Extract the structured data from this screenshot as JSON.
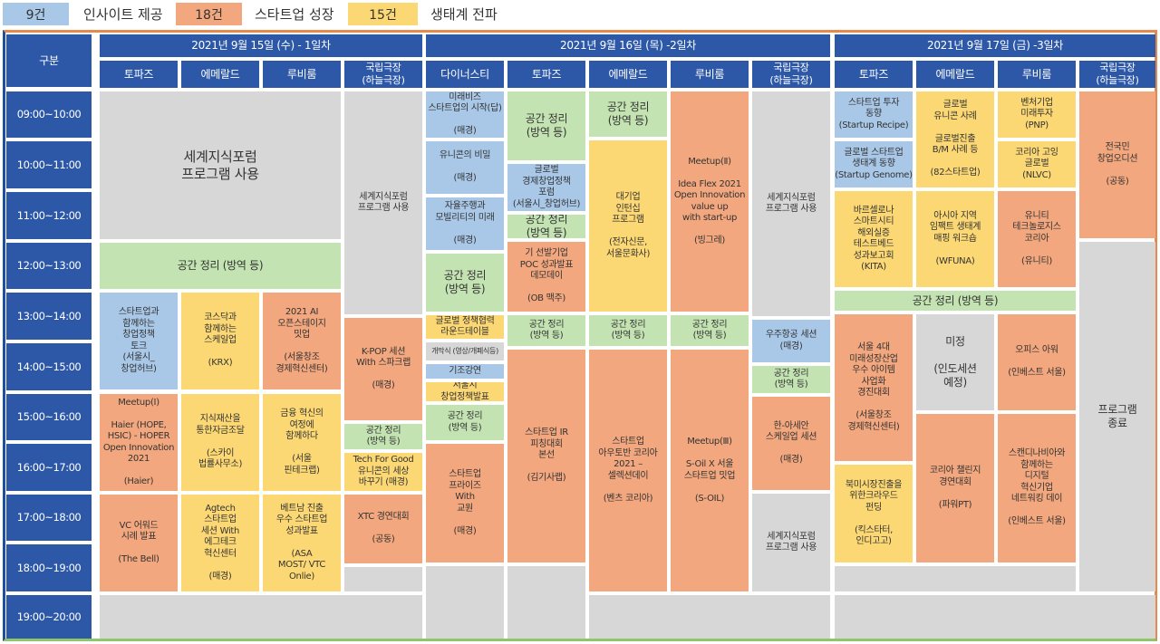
{
  "legend": [
    {
      "count": "9건",
      "label": "인사이트 제공",
      "color": "#a9c8e8"
    },
    {
      "count": "18건",
      "label": "스타트업 성장",
      "color": "#f2a77e"
    },
    {
      "count": "15건",
      "label": "생태계 전파",
      "color": "#fcd874"
    }
  ],
  "header": {
    "corner": "구분",
    "days": [
      "2021년 9월 15일 (수) - 1일차",
      "2021년 9월 16일 (목) -2일차",
      "2021년 9월 17일 (금) -3일차"
    ]
  },
  "venues": {
    "d1": [
      "토파즈",
      "에메랄드",
      "루비룸",
      "국립극장\n(하늘극장)"
    ],
    "d2": [
      "다이너스티",
      "토파즈",
      "에메랄드",
      "루비룸",
      "국립극장\n(하늘극장)"
    ],
    "d3": [
      "토파즈",
      "에메랄드",
      "루비룸",
      "국립극장\n(하늘극장)"
    ]
  },
  "times": [
    "09:00~10:00",
    "10:00~11:00",
    "11:00~12:00",
    "12:00~13:00",
    "13:00~14:00",
    "14:00~15:00",
    "15:00~16:00",
    "16:00~17:00",
    "17:00~18:00",
    "18:00~19:00",
    "19:00~20:00"
  ],
  "sessions": {
    "d1_forum": "세계지식포럼\n프로그램 사용",
    "d1_clean": "공간 정리 (방역 등)",
    "d1_theatre_forum": "세계지식포럼\n프로그램 사용",
    "d1_t1": "스타트업과\n함께하는\n창업정책\n토크\n(서울시_\n창업허브)",
    "d1_e1": "코스닥과\n함께하는\n스케일업\n\n(KRX)",
    "d1_r1": "2021 AI\n오픈스테이지\n밋업\n\n(서울창조\n경제혁신센터)",
    "d1_kpop": "K-POP 세션\nWith 스파크랩\n\n(매경)",
    "d1_t2": "Meetup(Ⅰ)\n\nHaier (HOPE,\nHSIC) - HOPER\nOpen Innovation\n2021\n\n(Haier)",
    "d1_e2": "지식재산을\n통한자금조달\n\n(스카이\n법률사무소)",
    "d1_r2": "금융 혁신의\n여정에\n함께하다\n\n(서울\n핀테크랩)",
    "d1_th_clean": "공간 정리\n(방역 등)",
    "d1_th_tech": "Tech For Good\n유니콘의 세상\n바꾸기 (매경)",
    "d1_t3": "VC 어워드\n시례 발표\n\n(The Bell)",
    "d1_e3": "Agtech\n스타트업\n세션 With\n에그테크\n혁신센터\n\n(매경)",
    "d1_r3": "베트남 진출\n우수 스타트업\n성과발표\n\n(ASA\nMOST/ VTC\nOnlie)",
    "d1_xtc": "XTC 경연대회\n\n(공동)",
    "d2_dy1": "미래비즈\n스타트업의 시작(답)\n\n(매경)",
    "d2_dy2": "유니콘의 비밀\n\n(매경)",
    "d2_dy3": "자율주행과\n모빌리티의 미래\n\n(매경)",
    "d2_dy_clean": "공간 정리\n(방역 등)",
    "d2_dy_round": "글로벌 정책협력\n라운드테이블",
    "d2_dy_open": "개막식 (영상/개폐식등)",
    "d2_dy_keynote": "기조강연",
    "d2_dy_seoul": "서울시\n창업정책발표",
    "d2_dy_clean2": "공간 정리\n(방역 등)",
    "d2_dy_prize": "스타트업\n프라이즈\nWith\n교원\n\n(매경)",
    "d2_tp_clean": "공간 정리\n(방역 등)",
    "d2_tp_global": "글로벌\n경제창업정책\n포럼\n(서울시_창업허브)",
    "d2_tp_clean2": "공간 정리\n(방역 등)",
    "d2_tp_poc": "기 선발기업\nPOC 성과발표\n데모데이\n\n(OB 맥주)",
    "d2_tp_clean3": "공간 정리\n(방역 등)",
    "d2_tp_ir": "스타트업 IR\n피칭대회\n본선\n\n(김기사랩)",
    "d2_em_clean": "공간 정리\n(방역 등)",
    "d2_em_intern": "대기업\n인턴십\n프로그램\n\n(전자신문,\n서울문화사)",
    "d2_em_clean2": "공간 정리\n(방역 등)",
    "d2_em_ara": "스타트업\n아우토반 코리아\n2021 –\n셀렉션데이\n\n(벤츠 코리아)",
    "d2_rb_meet2": "Meetup(Ⅱ)\n\nIdea Flex 2021\nOpen Innovation\nvalue up\nwith start-up\n\n(빙그레)",
    "d2_rb_clean": "공간 정리\n(방역 등)",
    "d2_rb_meet3": "Meetup(Ⅲ)\n\nS-Oil X 서울\n스타트업 밋업\n\n(S-OIL)",
    "d2_th_forum": "세계지식포럼\n프로그램 사용",
    "d2_th_space": "우주항공 세션\n(매경)",
    "d2_th_clean": "공간 정리\n(방역 등)",
    "d2_th_korea": "한-아세안\n스케일업 세션\n\n(매경)",
    "d2_th_forum2": "세계지식포럼\n프로그램 사용",
    "d3_tp_inv": "스타트업 투자\n동향\n(Startup Recipe)",
    "d3_tp_glob": "글로벌 스타트업\n생태계 동향\n(Startup Genome)",
    "d3_tp_barc": "바르셀로나\n스마트시티\n해외실증\n테스트베드\n성과보고회\n(KITA)",
    "d3_em_uni": "글로벌\n유니콘 사례\n\n글로벌진출\nB/M 사례 등\n\n(82스타트업)",
    "d3_em_asia": "아시아 지역\n임팩트 생태계\n매핑 워크숍\n\n(WFUNA)",
    "d3_rb_vc": "벤처기업\n미래투자\n(PNP)",
    "d3_rb_kr": "코리아 고잉\n글로벌\n(NLVC)",
    "d3_rb_uni": "유니티\n테크놀로지스\n코리아\n\n(유니티)",
    "d3_th_audition": "전국민\n창업오디션\n\n(공동)",
    "d3_clean": "공간 정리 (방역 등)",
    "d3_tp_seoul": "서울 4대\n미래성장산업\n우수 아이템\n사업화\n경진대회\n\n(서울창조\n경제혁신센터)",
    "d3_em_undecided": "미정\n\n(인도세션\n예정)",
    "d3_rb_office": "오피스 아워\n\n(인베스트 서울)",
    "d3_th_end": "프로그램\n종료",
    "d3_tp_crowd": "북미시장진출을\n위한크라우드\n펀딩\n\n(킥스타터,\n인디고고)",
    "d3_em_challenge": "코리아 챌린지\n경연대회\n\n(파워PT)",
    "d3_rb_scan": "스캔디나비아와\n함께하는\n디지털\n혁신기업\n네트워킹 데이\n\n(인베스트 서울)"
  }
}
